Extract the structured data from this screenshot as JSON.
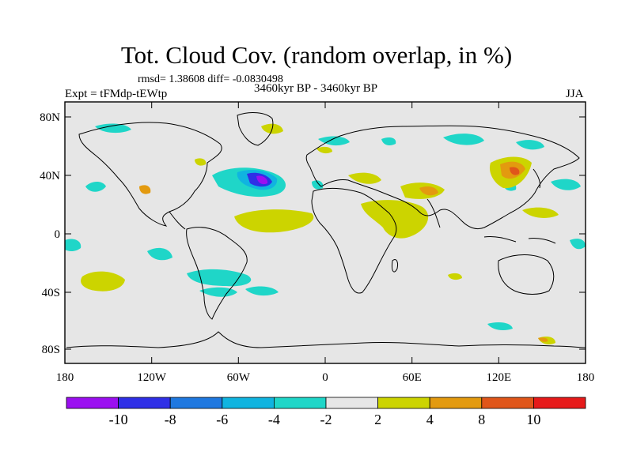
{
  "header": {
    "title": "Tot. Cloud Cov. (random overlap, in %)",
    "stats": "rmsd= 1.38608 diff= -0.0830498",
    "expt": "Expt = tFMdp-tEWtp",
    "period": "3460kyr BP - 3460kyr BP",
    "season": "JJA"
  },
  "map": {
    "background": "#e6e6e6",
    "lat_ticks": [
      "80N",
      "40N",
      "0",
      "40S",
      "80S"
    ],
    "lon_ticks": [
      "180",
      "120W",
      "60W",
      "0",
      "60E",
      "120E",
      "180"
    ]
  },
  "colorbar": {
    "colors": [
      "#9b0ff0",
      "#2f2fe6",
      "#1f78e0",
      "#10b4e0",
      "#1fd6c8",
      "#e6e6e6",
      "#ccd400",
      "#e39a0f",
      "#e0561a",
      "#e61a1a"
    ],
    "labels": [
      "-10",
      "-8",
      "-6",
      "-4",
      "-2",
      "2",
      "4",
      "8",
      "10"
    ]
  }
}
